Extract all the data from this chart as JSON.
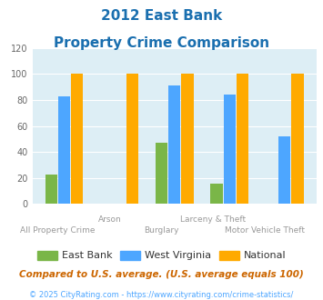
{
  "title_line1": "2012 East Bank",
  "title_line2": "Property Crime Comparison",
  "title_color": "#1a6faf",
  "categories": [
    "All Property Crime",
    "Arson",
    "Burglary",
    "Larceny & Theft",
    "Motor Vehicle Theft"
  ],
  "xlabels_top": [
    "",
    "Arson",
    "",
    "Larceny & Theft",
    ""
  ],
  "xlabels_bot": [
    "All Property Crime",
    "",
    "Burglary",
    "",
    "Motor Vehicle Theft"
  ],
  "east_bank": [
    23,
    0,
    47,
    16,
    0
  ],
  "west_virginia": [
    83,
    0,
    91,
    84,
    52
  ],
  "national": [
    100,
    100,
    100,
    100,
    100
  ],
  "color_eb": "#7ab648",
  "color_wv": "#4da6ff",
  "color_nat": "#ffaa00",
  "ylim": [
    0,
    120
  ],
  "yticks": [
    0,
    20,
    40,
    60,
    80,
    100,
    120
  ],
  "bg_color": "#ddeef5",
  "legend_eb": "East Bank",
  "legend_wv": "West Virginia",
  "legend_nat": "National",
  "legend_text_color": "#333333",
  "footnote1": "Compared to U.S. average. (U.S. average equals 100)",
  "footnote2": "© 2025 CityRating.com - https://www.cityrating.com/crime-statistics/",
  "footnote1_color": "#cc6600",
  "footnote2_color": "#4da6ff",
  "xtick_color": "#999999",
  "ytick_color": "#666666"
}
